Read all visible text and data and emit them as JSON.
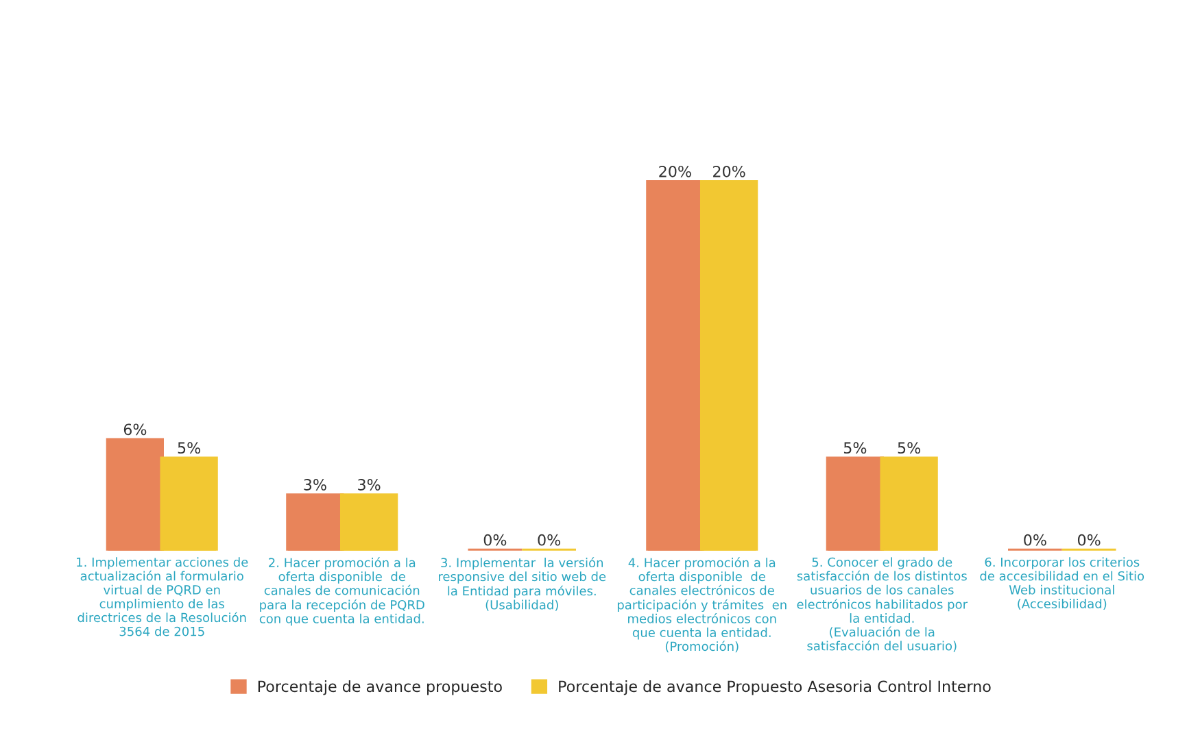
{
  "chart_data": {
    "type": "bar",
    "categories": [
      "1. Implementar acciones de\nactualización al formulario\nvirtual de PQRD en\ncumplimiento de las\ndirectrices de la Resolución\n3564 de 2015",
      "2. Hacer promoción a la\noferta disponible  de\ncanales de comunicación\npara la recepción de PQRD\ncon que cuenta la entidad.",
      "3. Implementar  la versión\nresponsive del sitio web de\nla Entidad para móviles.\n(Usabilidad)",
      "4. Hacer promoción a la\noferta disponible  de\ncanales electrónicos de\nparticipación y trámites  en\nmedios electrónicos con\nque cuenta la entidad.\n(Promoción)",
      "5. Conocer el grado de\nsatisfacción de los distintos\nusuarios de los canales\nelectrónicos habilitados por\nla entidad.\n(Evaluación de la\nsatisfacción del usuario)",
      "6. Incorporar los criterios\nde accesibilidad en el Sitio\nWeb institucional\n(Accesibilidad)"
    ],
    "series": [
      {
        "name": "Porcentaje de avance propuesto",
        "color": "#e8845a",
        "values": [
          6,
          3,
          0,
          20,
          5,
          0
        ],
        "value_labels": [
          "6%",
          "3%",
          "0%",
          "20%",
          "5%",
          "0%"
        ]
      },
      {
        "name": "Porcentaje de avance Propuesto Asesoria Control Interno",
        "color": "#f2c832",
        "values": [
          5,
          3,
          0,
          20,
          5,
          0
        ],
        "value_labels": [
          "5%",
          "3%",
          "0%",
          "20%",
          "5%",
          "0%"
        ]
      }
    ],
    "legend": "bottom",
    "grid": false
  }
}
